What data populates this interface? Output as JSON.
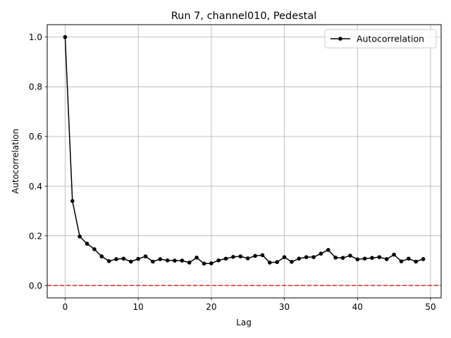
{
  "chart_data": {
    "type": "line",
    "title": "Run 7, channel010, Pedestal",
    "xlabel": "Lag",
    "ylabel": "Autocorrelation",
    "xlim": [
      -2.45,
      51.45
    ],
    "ylim": [
      -0.05,
      1.05
    ],
    "xticks": [
      0,
      10,
      20,
      30,
      40,
      50
    ],
    "yticks": [
      0.0,
      0.2,
      0.4,
      0.6,
      0.8,
      1.0
    ],
    "xtick_labels": [
      "0",
      "10",
      "20",
      "30",
      "40",
      "50"
    ],
    "ytick_labels": [
      "0.0",
      "0.2",
      "0.4",
      "0.6",
      "0.8",
      "1.0"
    ],
    "grid": true,
    "legend_position": "upper-right",
    "series": [
      {
        "name": "Autocorrelation",
        "color": "#000000",
        "marker": "circle",
        "x": [
          0,
          1,
          2,
          3,
          4,
          5,
          6,
          7,
          8,
          9,
          10,
          11,
          12,
          13,
          14,
          15,
          16,
          17,
          18,
          19,
          20,
          21,
          22,
          23,
          24,
          25,
          26,
          27,
          28,
          29,
          30,
          31,
          32,
          33,
          34,
          35,
          36,
          37,
          38,
          39,
          40,
          41,
          42,
          43,
          44,
          45,
          46,
          47,
          48,
          49
        ],
        "y": [
          1.0,
          0.34,
          0.197,
          0.168,
          0.146,
          0.117,
          0.098,
          0.106,
          0.108,
          0.096,
          0.107,
          0.117,
          0.096,
          0.106,
          0.101,
          0.1,
          0.1,
          0.092,
          0.112,
          0.088,
          0.089,
          0.101,
          0.108,
          0.115,
          0.117,
          0.109,
          0.119,
          0.122,
          0.092,
          0.094,
          0.114,
          0.095,
          0.108,
          0.114,
          0.114,
          0.128,
          0.143,
          0.112,
          0.111,
          0.12,
          0.105,
          0.108,
          0.111,
          0.114,
          0.106,
          0.124,
          0.097,
          0.108,
          0.096,
          0.106
        ]
      }
    ],
    "reference_lines": [
      {
        "orientation": "horizontal",
        "y": 0.0,
        "color": "#d62728",
        "style": "dashed"
      }
    ]
  }
}
